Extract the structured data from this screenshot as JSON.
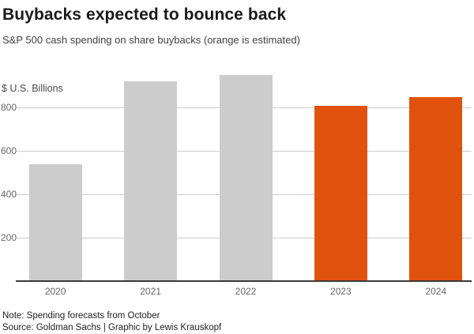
{
  "page": {
    "title": "Buybacks expected to bounce back",
    "subtitle": "S&P 500 cash spending on share buybacks (orange is estimated)",
    "note": "Note: Spending forecasts from October",
    "source": "Source: Goldman Sachs | Graphic by Lewis Krauskopf"
  },
  "chart_data": {
    "type": "bar",
    "title": "Buybacks expected to bounce back",
    "subtitle": "S&P 500 cash spending on share buybacks (orange is estimated)",
    "ylabel": "$ U.S. Billions",
    "xlabel": "",
    "categories": [
      "2020",
      "2021",
      "2022",
      "2023",
      "2024"
    ],
    "values": [
      540,
      920,
      950,
      810,
      850
    ],
    "estimated": [
      false,
      false,
      false,
      true,
      true
    ],
    "yticks": [
      200,
      400,
      600,
      800
    ],
    "ylim": [
      0,
      1000
    ],
    "grid": true,
    "legend_position": "none",
    "colors": {
      "actual_bar": "#cccccc",
      "estimated_bar": "#e1520f",
      "gridline": "#cccccc",
      "axis_line": "#3a3a3a",
      "tick_text": "#666666",
      "title_text": "#1a1a1a",
      "subtitle_text": "#404040",
      "footer_text": "#222222"
    }
  }
}
